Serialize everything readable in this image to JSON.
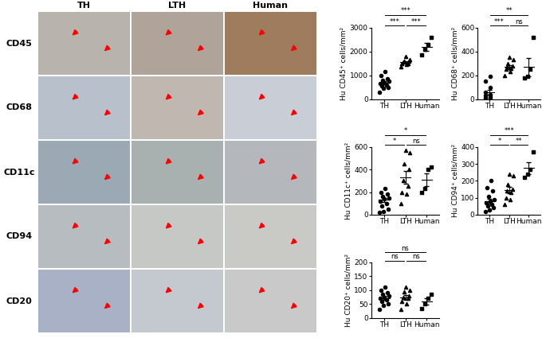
{
  "image_panel": {
    "columns": [
      "TH",
      "LTH",
      "Human"
    ],
    "rows": [
      "CD45",
      "CD68",
      "CD11c",
      "CD94",
      "CD20"
    ]
  },
  "chart_data": [
    {
      "type": "scatter",
      "y_label": "Hu CD45⁺ cells/mm²",
      "categories": [
        "TH",
        "LTH",
        "Human"
      ],
      "groups": [
        {
          "marker": "circle",
          "values": [
            300,
            450,
            500,
            550,
            600,
            650,
            700,
            750,
            800,
            850,
            1000,
            1150
          ],
          "mean": 700,
          "error": 70
        },
        {
          "marker": "triangle",
          "values": [
            1350,
            1450,
            1500,
            1500,
            1550,
            1600,
            1600,
            1650,
            1800
          ],
          "mean": 1550,
          "error": 45
        },
        {
          "marker": "square",
          "values": [
            1850,
            2100,
            2300,
            2600
          ],
          "mean": 2200,
          "error": 160
        }
      ],
      "ylim": [
        0,
        3000
      ],
      "yticks": [
        0,
        1000,
        2000,
        3000
      ],
      "comparisons": [
        {
          "from": "TH",
          "to": "LTH",
          "text": "***"
        },
        {
          "from": "LTH",
          "to": "Human",
          "text": "***"
        },
        {
          "from": "TH",
          "to": "Human",
          "text": "***"
        }
      ]
    },
    {
      "type": "scatter",
      "y_label": "Hu CD68⁺ cells/mm²",
      "categories": [
        "TH",
        "LTH",
        "Human"
      ],
      "groups": [
        {
          "marker": "circle",
          "values": [
            0,
            0,
            10,
            20,
            30,
            40,
            60,
            100,
            150,
            190
          ],
          "mean": 60,
          "error": 20
        },
        {
          "marker": "triangle",
          "values": [
            200,
            230,
            250,
            260,
            270,
            280,
            300,
            330,
            350
          ],
          "mean": 270,
          "error": 15
        },
        {
          "marker": "square",
          "values": [
            180,
            190,
            250,
            520
          ],
          "mean": 270,
          "error": 75
        }
      ],
      "ylim": [
        0,
        600
      ],
      "yticks": [
        0,
        200,
        400,
        600
      ],
      "comparisons": [
        {
          "from": "TH",
          "to": "LTH",
          "text": "***"
        },
        {
          "from": "LTH",
          "to": "Human",
          "text": "ns"
        },
        {
          "from": "TH",
          "to": "Human",
          "text": "**"
        }
      ]
    },
    {
      "type": "scatter",
      "y_label": "Hu CD11c⁺ cells/mm²",
      "categories": [
        "TH",
        "LTH",
        "Human"
      ],
      "groups": [
        {
          "marker": "circle",
          "values": [
            20,
            30,
            50,
            80,
            100,
            120,
            140,
            150,
            160,
            180,
            200,
            230
          ],
          "mean": 130,
          "error": 20
        },
        {
          "marker": "triangle",
          "values": [
            100,
            180,
            200,
            250,
            300,
            400,
            450,
            550,
            570
          ],
          "mean": 330,
          "error": 55
        },
        {
          "marker": "square",
          "values": [
            200,
            230,
            400,
            420
          ],
          "mean": 310,
          "error": 55
        }
      ],
      "ylim": [
        0,
        600
      ],
      "yticks": [
        0,
        200,
        400,
        600
      ],
      "comparisons": [
        {
          "from": "TH",
          "to": "LTH",
          "text": "*"
        },
        {
          "from": "LTH",
          "to": "Human",
          "text": "ns"
        },
        {
          "from": "TH",
          "to": "Human",
          "text": "*"
        }
      ]
    },
    {
      "type": "scatter",
      "y_label": "Hu CD94⁺ cells/mm²",
      "categories": [
        "TH",
        "LTH",
        "Human"
      ],
      "groups": [
        {
          "marker": "circle",
          "values": [
            20,
            30,
            40,
            50,
            60,
            70,
            80,
            90,
            110,
            140,
            160,
            200
          ],
          "mean": 80,
          "error": 15
        },
        {
          "marker": "triangle",
          "values": [
            60,
            90,
            100,
            130,
            140,
            150,
            180,
            230,
            240
          ],
          "mean": 145,
          "error": 20
        },
        {
          "marker": "square",
          "values": [
            220,
            240,
            270,
            370
          ],
          "mean": 275,
          "error": 35
        }
      ],
      "ylim": [
        0,
        400
      ],
      "yticks": [
        0,
        100,
        200,
        300,
        400
      ],
      "comparisons": [
        {
          "from": "TH",
          "to": "LTH",
          "text": "*"
        },
        {
          "from": "LTH",
          "to": "Human",
          "text": "**"
        },
        {
          "from": "TH",
          "to": "Human",
          "text": "***"
        }
      ]
    },
    {
      "type": "scatter",
      "y_label": "Hu CD20⁺ cells/mm²",
      "categories": [
        "TH",
        "LTH",
        "Human"
      ],
      "groups": [
        {
          "marker": "circle",
          "values": [
            30,
            45,
            50,
            60,
            65,
            70,
            75,
            80,
            85,
            90,
            100,
            110
          ],
          "mean": 72,
          "error": 7
        },
        {
          "marker": "triangle",
          "values": [
            30,
            50,
            60,
            70,
            75,
            80,
            95,
            100,
            110
          ],
          "mean": 74,
          "error": 9
        },
        {
          "marker": "square",
          "values": [
            35,
            50,
            70,
            85
          ],
          "mean": 60,
          "error": 11
        }
      ],
      "ylim": [
        0,
        200
      ],
      "yticks": [
        0,
        50,
        100,
        150,
        200
      ],
      "comparisons": [
        {
          "from": "TH",
          "to": "LTH",
          "text": "ns"
        },
        {
          "from": "LTH",
          "to": "Human",
          "text": "ns"
        },
        {
          "from": "TH",
          "to": "Human",
          "text": "ns"
        }
      ]
    }
  ]
}
